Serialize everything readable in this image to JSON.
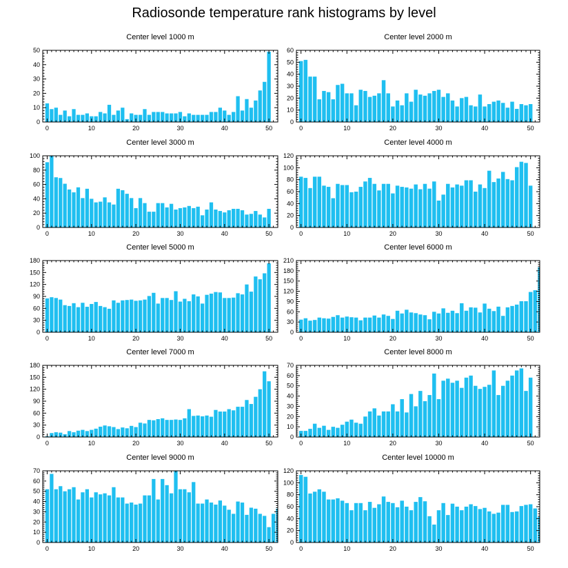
{
  "title": "Radiosonde temperature rank histograms by level",
  "colors": {
    "bar": "#1fbff0",
    "axis": "#000000"
  },
  "chart_data": [
    {
      "type": "bar",
      "title": "Center level 1000 m",
      "xlabel": "",
      "ylabel": "",
      "xlim": [
        -1,
        52
      ],
      "xticks": [
        0,
        10,
        20,
        30,
        40,
        50
      ],
      "ylim": [
        0,
        50
      ],
      "yticks": [
        0,
        10,
        20,
        30,
        40,
        50
      ],
      "values": [
        13,
        9,
        10,
        5,
        8,
        4,
        9,
        5,
        5,
        6,
        4,
        4,
        7,
        6,
        12,
        5,
        8,
        10,
        2,
        6,
        5,
        5,
        9,
        5,
        7,
        7,
        7,
        6,
        6,
        6,
        7,
        4,
        6,
        5,
        5,
        5,
        5,
        7,
        7,
        10,
        8,
        5,
        7,
        18,
        8,
        16,
        10,
        15,
        22,
        28,
        49
      ]
    },
    {
      "type": "bar",
      "title": "Center level 2000 m",
      "xlabel": "",
      "ylabel": "",
      "xlim": [
        -1,
        52
      ],
      "xticks": [
        0,
        10,
        20,
        30,
        40,
        50
      ],
      "ylim": [
        0,
        60
      ],
      "yticks": [
        0,
        10,
        20,
        30,
        40,
        50,
        60
      ],
      "values": [
        51,
        52,
        38,
        38,
        19,
        26,
        25,
        19,
        31,
        32,
        24,
        24,
        14,
        27,
        26,
        21,
        22,
        24,
        35,
        24,
        13,
        18,
        14,
        24,
        17,
        27,
        23,
        22,
        24,
        26,
        27,
        21,
        24,
        18,
        13,
        20,
        21,
        14,
        13,
        23,
        13,
        15,
        17,
        18,
        16,
        12,
        17,
        11,
        15,
        14,
        15
      ]
    },
    {
      "type": "bar",
      "title": "Center level 3000 m",
      "xlabel": "",
      "ylabel": "",
      "xlim": [
        -1,
        52
      ],
      "xticks": [
        0,
        10,
        20,
        30,
        40,
        50
      ],
      "ylim": [
        0,
        100
      ],
      "yticks": [
        0,
        20,
        40,
        60,
        80,
        100
      ],
      "values": [
        91,
        100,
        70,
        69,
        61,
        53,
        49,
        56,
        41,
        54,
        40,
        35,
        36,
        42,
        35,
        32,
        54,
        52,
        47,
        41,
        27,
        41,
        34,
        22,
        22,
        34,
        34,
        28,
        33,
        25,
        27,
        28,
        30,
        27,
        29,
        17,
        25,
        35,
        25,
        23,
        21,
        24,
        26,
        26,
        24,
        18,
        19,
        23,
        18,
        14,
        26
      ]
    },
    {
      "type": "bar",
      "title": "Center level 4000 m",
      "xlabel": "",
      "ylabel": "",
      "xlim": [
        -1,
        52
      ],
      "xticks": [
        0,
        10,
        20,
        30,
        40,
        50
      ],
      "ylim": [
        0,
        120
      ],
      "yticks": [
        0,
        20,
        40,
        60,
        80,
        100,
        120
      ],
      "values": [
        85,
        83,
        66,
        85,
        85,
        70,
        68,
        49,
        73,
        71,
        71,
        59,
        60,
        68,
        77,
        83,
        73,
        62,
        73,
        73,
        57,
        70,
        68,
        67,
        65,
        72,
        64,
        73,
        65,
        77,
        45,
        55,
        73,
        67,
        72,
        70,
        79,
        79,
        60,
        72,
        66,
        95,
        76,
        82,
        93,
        81,
        79,
        101,
        110,
        108,
        70
      ]
    },
    {
      "type": "bar",
      "title": "Center level 5000 m",
      "xlabel": "",
      "ylabel": "",
      "xlim": [
        -1,
        52
      ],
      "xticks": [
        0,
        10,
        20,
        30,
        40,
        50
      ],
      "ylim": [
        0,
        180
      ],
      "yticks": [
        0,
        30,
        60,
        90,
        120,
        150,
        180
      ],
      "values": [
        85,
        88,
        86,
        82,
        68,
        66,
        73,
        63,
        74,
        64,
        71,
        76,
        66,
        63,
        59,
        80,
        74,
        80,
        81,
        82,
        79,
        80,
        82,
        91,
        99,
        72,
        86,
        86,
        81,
        103,
        77,
        84,
        78,
        95,
        90,
        72,
        94,
        97,
        101,
        100,
        86,
        86,
        87,
        98,
        95,
        120,
        102,
        140,
        133,
        148,
        173
      ]
    },
    {
      "type": "bar",
      "title": "Center level 6000 m",
      "xlabel": "",
      "ylabel": "",
      "xlim": [
        -1,
        52
      ],
      "xticks": [
        0,
        10,
        20,
        30,
        40,
        50
      ],
      "ylim": [
        0,
        210
      ],
      "yticks": [
        0,
        30,
        60,
        90,
        120,
        150,
        180,
        210
      ],
      "values": [
        37,
        41,
        34,
        36,
        43,
        41,
        40,
        45,
        50,
        43,
        46,
        44,
        43,
        35,
        43,
        43,
        49,
        43,
        52,
        48,
        39,
        63,
        55,
        66,
        58,
        56,
        52,
        50,
        38,
        60,
        55,
        70,
        57,
        63,
        56,
        85,
        63,
        73,
        72,
        58,
        84,
        69,
        62,
        75,
        48,
        73,
        77,
        81,
        91,
        91,
        118,
        123,
        190
      ]
    },
    {
      "type": "bar",
      "title": "Center level 7000 m",
      "xlabel": "",
      "ylabel": "",
      "xlim": [
        -1,
        52
      ],
      "xticks": [
        0,
        10,
        20,
        30,
        40,
        50
      ],
      "ylim": [
        0,
        180
      ],
      "yticks": [
        0,
        30,
        60,
        90,
        120,
        150,
        180
      ],
      "values": [
        2,
        10,
        12,
        11,
        7,
        15,
        12,
        16,
        18,
        15,
        18,
        21,
        26,
        29,
        27,
        25,
        20,
        24,
        22,
        28,
        25,
        36,
        34,
        43,
        42,
        45,
        47,
        43,
        43,
        44,
        43,
        47,
        70,
        53,
        54,
        52,
        54,
        51,
        68,
        64,
        64,
        70,
        67,
        76,
        76,
        93,
        83,
        101,
        120,
        165,
        140
      ]
    },
    {
      "type": "bar",
      "title": "Center level 8000 m",
      "xlabel": "",
      "ylabel": "",
      "xlim": [
        -1,
        52
      ],
      "xticks": [
        0,
        10,
        20,
        30,
        40,
        50
      ],
      "ylim": [
        0,
        70
      ],
      "yticks": [
        0,
        10,
        20,
        30,
        40,
        50,
        60,
        70
      ],
      "values": [
        6,
        6,
        8,
        13,
        9,
        11,
        7,
        10,
        9,
        12,
        15,
        17,
        14,
        13,
        20,
        25,
        28,
        21,
        25,
        25,
        32,
        25,
        37,
        24,
        42,
        30,
        45,
        35,
        41,
        62,
        37,
        55,
        57,
        53,
        55,
        48,
        58,
        60,
        50,
        47,
        49,
        51,
        65,
        41,
        50,
        55,
        60,
        65,
        67,
        45,
        58
      ]
    },
    {
      "type": "bar",
      "title": "Center level 9000 m",
      "xlabel": "",
      "ylabel": "",
      "xlim": [
        -1,
        52
      ],
      "xticks": [
        0,
        10,
        20,
        30,
        40,
        50
      ],
      "ylim": [
        0,
        70
      ],
      "yticks": [
        0,
        10,
        20,
        30,
        40,
        50,
        60,
        70
      ],
      "values": [
        52,
        67,
        52,
        55,
        50,
        52,
        54,
        42,
        49,
        52,
        44,
        49,
        47,
        48,
        46,
        54,
        44,
        44,
        38,
        39,
        37,
        38,
        46,
        46,
        62,
        42,
        62,
        56,
        48,
        70,
        52,
        52,
        49,
        59,
        38,
        38,
        42,
        39,
        37,
        41,
        36,
        32,
        28,
        40,
        39,
        27,
        34,
        33,
        28,
        26,
        15,
        28,
        33
      ]
    },
    {
      "type": "bar",
      "title": "Center level 10000 m",
      "xlabel": "",
      "ylabel": "",
      "xlim": [
        -1,
        52
      ],
      "xticks": [
        0,
        10,
        20,
        30,
        40,
        50
      ],
      "ylim": [
        0,
        120
      ],
      "yticks": [
        0,
        20,
        40,
        60,
        80,
        100,
        120
      ],
      "values": [
        113,
        110,
        82,
        85,
        89,
        85,
        72,
        72,
        74,
        70,
        66,
        54,
        66,
        66,
        54,
        68,
        58,
        64,
        77,
        68,
        66,
        59,
        70,
        60,
        54,
        68,
        76,
        69,
        44,
        30,
        54,
        66,
        46,
        65,
        60,
        54,
        60,
        64,
        61,
        56,
        58,
        52,
        48,
        50,
        63,
        63,
        51,
        52,
        61,
        63,
        64,
        57,
        43
      ]
    }
  ]
}
